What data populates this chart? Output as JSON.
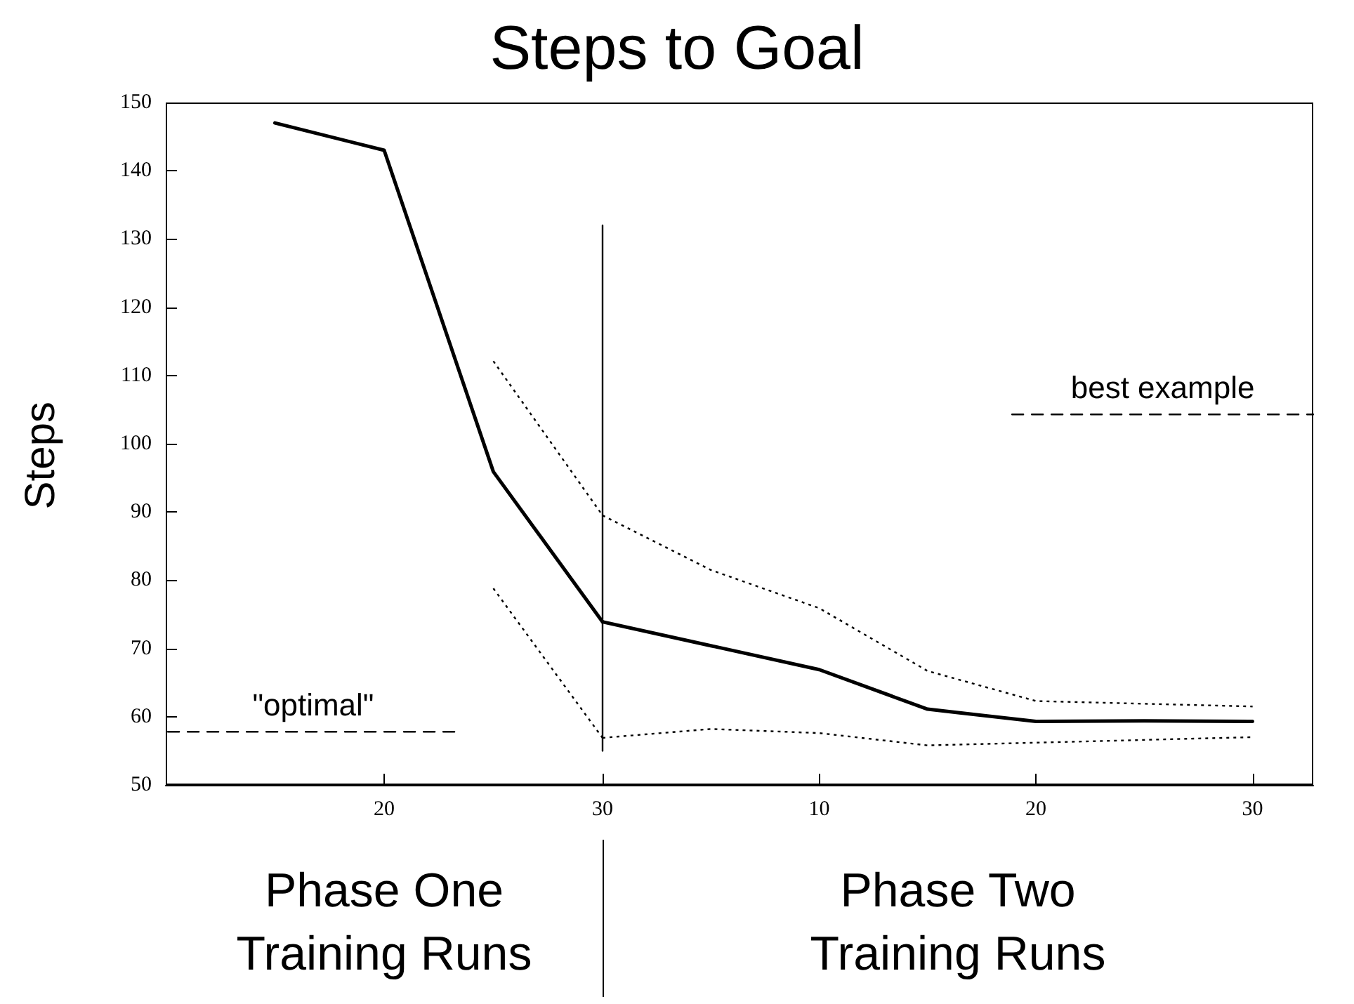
{
  "chart_data": [
    {
      "type": "line",
      "title": "Steps to Goal",
      "ylabel": "Steps",
      "xlabel": "Phase One\nTraining Runs",
      "xlim": [
        10,
        30
      ],
      "ylim": [
        50,
        150
      ],
      "xticks": [
        20,
        30
      ],
      "yticks": [
        50,
        60,
        70,
        80,
        90,
        100,
        110,
        120,
        130,
        140,
        150
      ],
      "grid": false,
      "marker": "none",
      "series": [
        {
          "x": [
            15,
            20,
            25,
            30
          ],
          "values": [
            147,
            143,
            95.9,
            73.9
          ],
          "color": "#000000",
          "line_style": "solid"
        },
        {
          "x": [
            25,
            30
          ],
          "values": [
            112.1,
            89.5
          ],
          "color": "#000000",
          "line_style": "dotted"
        },
        {
          "x": [
            25,
            30
          ],
          "values": [
            78.8,
            56.9
          ],
          "color": "#000000",
          "line_style": "dotted"
        },
        {
          "x": [
            30,
            30
          ],
          "values": [
            55,
            132
          ],
          "color": "#000000",
          "line_style": "solid"
        },
        {
          "name": "\"optimal\"",
          "x": [
            10.1,
            23.4
          ],
          "values": [
            57.8,
            57.8
          ],
          "color": "#000000",
          "line_style": "dashed"
        }
      ]
    },
    {
      "type": "line",
      "xlabel": "Phase Two\nTraining Runs",
      "xlim": [
        0,
        32.8
      ],
      "ylim": [
        50,
        150
      ],
      "xticks": [
        10,
        20,
        30
      ],
      "tick_labels": "x",
      "grid": false,
      "marker": "none",
      "series": [
        {
          "x": [
            0,
            5,
            10,
            15,
            20,
            25,
            30
          ],
          "values": [
            73.9,
            70.4,
            66.9,
            61.1,
            59.3,
            59.4,
            59.3
          ],
          "color": "#000000",
          "line_style": "solid"
        },
        {
          "x": [
            0,
            5,
            10,
            15,
            20,
            25,
            30
          ],
          "values": [
            89.5,
            81.5,
            75.9,
            66.7,
            62.3,
            61.9,
            61.5
          ],
          "color": "#000000",
          "line_style": "dotted"
        },
        {
          "x": [
            0,
            5,
            10,
            15,
            20,
            25,
            30
          ],
          "values": [
            56.9,
            58.2,
            57.6,
            55.8,
            56.2,
            56.6,
            57
          ],
          "color": "#000000",
          "line_style": "dotted"
        },
        {
          "name": "best example",
          "x": [
            18.9,
            32.8
          ],
          "values": [
            104.3,
            104.3
          ],
          "color": "#000000",
          "line_style": "dashed"
        }
      ]
    }
  ]
}
